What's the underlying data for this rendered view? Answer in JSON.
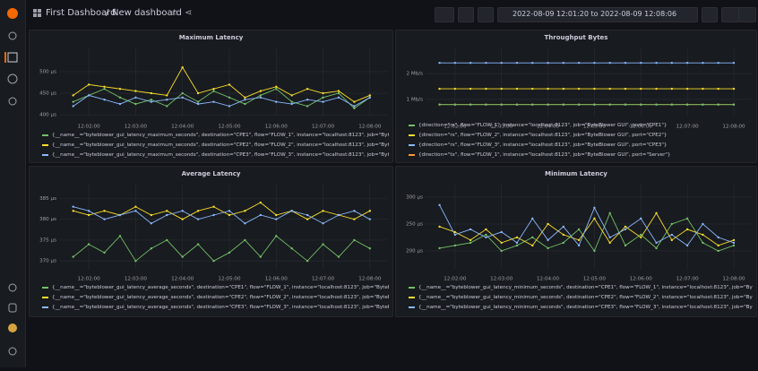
{
  "header": {
    "breadcrumb_folder": "First Dashboard",
    "separator": "/",
    "dashboard": "New dashboard",
    "time_range": "2022-08-09 12:01:20 to 2022-08-09 12:08:06"
  },
  "chart_data": [
    {
      "type": "line",
      "title": "Maximum Latency",
      "x": [
        "12:01:40",
        "12:02:00",
        "12:02:20",
        "12:02:40",
        "12:03:00",
        "12:03:20",
        "12:03:40",
        "12:04:00",
        "12:04:20",
        "12:04:40",
        "12:05:00",
        "12:05:20",
        "12:05:40",
        "12:06:00",
        "12:06:20",
        "12:06:40",
        "12:07:00",
        "12:07:20",
        "12:07:40",
        "12:08:00"
      ],
      "xlim": [
        "12:01:22",
        "12:08:22"
      ],
      "xticks": [
        "12:02:00",
        "12:03:00",
        "12:04:00",
        "12:05:00",
        "12:06:00",
        "12:07:00",
        "12:08:00"
      ],
      "ylim": [
        396,
        554
      ],
      "yticks": [
        {
          "value": 400,
          "label": "400 µs"
        },
        {
          "value": 450,
          "label": "450 µs"
        },
        {
          "value": 500,
          "label": "500 µs"
        }
      ],
      "series": [
        {
          "name": "{__name__=\"byteblower_gui_latency_maximum_seconds\", destination=\"CPE1\", flow=\"FLOW_1\", instance=\"localhost:8123\", job=\"ByteBlow",
          "color": "#73bf69",
          "values": [
            430,
            445,
            460,
            440,
            425,
            435,
            420,
            450,
            430,
            455,
            440,
            425,
            445,
            460,
            430,
            420,
            440,
            450,
            415,
            440
          ]
        },
        {
          "name": "{__name__=\"byteblower_gui_latency_maximum_seconds\", destination=\"CPE2\", flow=\"FLOW_2\", instance=\"localhost:8123\", job=\"ByteBlow",
          "color": "#fade2a",
          "values": [
            445,
            470,
            465,
            460,
            455,
            450,
            445,
            510,
            450,
            460,
            470,
            440,
            455,
            465,
            445,
            460,
            450,
            455,
            430,
            445
          ]
        },
        {
          "name": "{__name__=\"byteblower_gui_latency_maximum_seconds\", destination=\"CPE3\", flow=\"FLOW_3\", instance=\"localhost:8123\", job=\"ByteBlow",
          "color": "#8ab8ff",
          "values": [
            420,
            445,
            435,
            425,
            440,
            430,
            435,
            440,
            425,
            430,
            420,
            435,
            440,
            430,
            425,
            435,
            430,
            440,
            420,
            440
          ]
        }
      ]
    },
    {
      "type": "line",
      "title": "Throughput Bytes",
      "x": [
        "12:01:40",
        "12:02:00",
        "12:02:20",
        "12:02:40",
        "12:03:00",
        "12:03:20",
        "12:03:40",
        "12:04:00",
        "12:04:20",
        "12:04:40",
        "12:05:00",
        "12:05:20",
        "12:05:40",
        "12:06:00",
        "12:06:20",
        "12:06:40",
        "12:07:00",
        "12:07:20",
        "12:07:40",
        "12:08:00"
      ],
      "xlim": [
        "12:01:22",
        "12:08:22"
      ],
      "xticks": [
        "12:02:00",
        "12:03:00",
        "12:04:00",
        "12:05:00",
        "12:06:00",
        "12:07:00",
        "12:08:00"
      ],
      "ylim": [
        0.34,
        2.97
      ],
      "yticks": [
        {
          "value": 1,
          "label": "1 Mb/s"
        },
        {
          "value": 2,
          "label": "2 Mb/s"
        }
      ],
      "series": [
        {
          "name": "{direction=\"tx\", flow=\"FLOW_1\", instance=\"localhost:8123\", job=\"ByteBlower GUI\", port=\"Server\"}",
          "color": "#ff9830",
          "values": [
            0.8,
            0.8,
            0.8,
            0.8,
            0.8,
            0.8,
            0.8,
            0.8,
            0.8,
            0.8,
            0.8,
            0.8,
            0.8,
            0.8,
            0.8,
            0.8,
            0.8,
            0.8,
            0.8,
            0.8
          ]
        },
        {
          "name": "{direction=\"rx\", flow=\"FLOW_1\", instance=\"localhost:8123\", job=\"ByteBlower GUI\", port=\"CPE1\"}",
          "color": "#73bf69",
          "values": [
            0.8,
            0.8,
            0.8,
            0.8,
            0.8,
            0.8,
            0.8,
            0.8,
            0.8,
            0.8,
            0.8,
            0.8,
            0.8,
            0.8,
            0.8,
            0.8,
            0.8,
            0.8,
            0.8,
            0.8
          ]
        },
        {
          "name": "{direction=\"rx\", flow=\"FLOW_2\", instance=\"localhost:8123\", job=\"ByteBlower GUI\", port=\"CPE2\"}",
          "color": "#fade2a",
          "values": [
            1.41,
            1.41,
            1.41,
            1.41,
            1.41,
            1.41,
            1.41,
            1.41,
            1.41,
            1.41,
            1.41,
            1.41,
            1.41,
            1.41,
            1.41,
            1.41,
            1.41,
            1.41,
            1.41,
            1.41
          ]
        },
        {
          "name": "{direction=\"rx\", flow=\"FLOW_3\", instance=\"localhost:8123\", job=\"ByteBlower GUI\", port=\"CPE3\"}",
          "color": "#8ab8ff",
          "values": [
            2.41,
            2.41,
            2.41,
            2.41,
            2.41,
            2.41,
            2.41,
            2.41,
            2.41,
            2.41,
            2.41,
            2.41,
            2.41,
            2.41,
            2.41,
            2.41,
            2.41,
            2.41,
            2.41,
            2.41
          ]
        }
      ]
    },
    {
      "type": "line",
      "title": "Average Latency",
      "x": [
        "12:01:40",
        "12:02:00",
        "12:02:20",
        "12:02:40",
        "12:03:00",
        "12:03:20",
        "12:03:40",
        "12:04:00",
        "12:04:20",
        "12:04:40",
        "12:05:00",
        "12:05:20",
        "12:05:40",
        "12:06:00",
        "12:06:20",
        "12:06:40",
        "12:07:00",
        "12:07:20",
        "12:07:40",
        "12:08:00"
      ],
      "xlim": [
        "12:01:22",
        "12:08:22"
      ],
      "xticks": [
        "12:02:00",
        "12:03:00",
        "12:04:00",
        "12:05:00",
        "12:06:00",
        "12:07:00",
        "12:08:00"
      ],
      "ylim": [
        367.9,
        388.3
      ],
      "yticks": [
        {
          "value": 370,
          "label": "370 µs"
        },
        {
          "value": 375,
          "label": "375 µs"
        },
        {
          "value": 380,
          "label": "380 µs"
        },
        {
          "value": 385,
          "label": "385 µs"
        }
      ],
      "series": [
        {
          "name": "{__name__=\"byteblower_gui_latency_average_seconds\", destination=\"CPE1\", flow=\"FLOW_1\", instance=\"localhost:8123\", job=\"ByteBlow",
          "color": "#73bf69",
          "values": [
            371,
            374,
            372,
            376,
            370,
            373,
            375,
            371,
            374,
            370,
            372,
            375,
            371,
            376,
            373,
            370,
            374,
            371,
            375,
            373
          ]
        },
        {
          "name": "{__name__=\"byteblower_gui_latency_average_seconds\", destination=\"CPE2\", flow=\"FLOW_2\", instance=\"localhost:8123\", job=\"ByteBlow",
          "color": "#fade2a",
          "values": [
            382,
            381,
            382,
            381,
            383,
            381,
            382,
            380,
            382,
            383,
            381,
            382,
            384,
            381,
            382,
            380,
            382,
            381,
            380,
            382
          ]
        },
        {
          "name": "{__name__=\"byteblower_gui_latency_average_seconds\", destination=\"CPE3\", flow=\"FLOW_3\", instance=\"localhost:8123\", job=\"ByteBlow",
          "color": "#8ab8ff",
          "values": [
            383,
            382,
            380,
            381,
            382,
            379,
            381,
            382,
            380,
            381,
            382,
            379,
            381,
            380,
            382,
            381,
            379,
            381,
            382,
            380
          ]
        }
      ]
    },
    {
      "type": "line",
      "title": "Minimum Latency",
      "x": [
        "12:01:40",
        "12:02:00",
        "12:02:20",
        "12:02:40",
        "12:03:00",
        "12:03:20",
        "12:03:40",
        "12:04:00",
        "12:04:20",
        "12:04:40",
        "12:05:00",
        "12:05:20",
        "12:05:40",
        "12:06:00",
        "12:06:20",
        "12:06:40",
        "12:07:00",
        "12:07:20",
        "12:07:40",
        "12:08:00"
      ],
      "xlim": [
        "12:01:22",
        "12:08:22"
      ],
      "xticks": [
        "12:02:00",
        "12:03:00",
        "12:04:00",
        "12:05:00",
        "12:06:00",
        "12:07:00",
        "12:08:00"
      ],
      "ylim": [
        165,
        323
      ],
      "yticks": [
        {
          "value": 200,
          "label": "200 µs"
        },
        {
          "value": 250,
          "label": "250 µs"
        },
        {
          "value": 300,
          "label": "300 µs"
        }
      ],
      "series": [
        {
          "name": "{__name__=\"byteblower_gui_latency_minimum_seconds\", destination=\"CPE1\", flow=\"FLOW_1\", instance=\"localhost:8123\", job=\"ByteBlo",
          "color": "#73bf69",
          "values": [
            205,
            210,
            215,
            230,
            200,
            210,
            225,
            205,
            215,
            240,
            200,
            270,
            210,
            230,
            205,
            250,
            260,
            215,
            200,
            210
          ]
        },
        {
          "name": "{__name__=\"byteblower_gui_latency_minimum_seconds\", destination=\"CPE2\", flow=\"FLOW_2\", instance=\"localhost:8123\", job=\"ByteBlo",
          "color": "#fade2a",
          "values": [
            245,
            235,
            220,
            240,
            215,
            225,
            210,
            250,
            230,
            220,
            260,
            215,
            245,
            225,
            270,
            220,
            240,
            230,
            210,
            220
          ]
        },
        {
          "name": "{__name__=\"byteblower_gui_latency_minimum_seconds\", destination=\"CPE3\", flow=\"FLOW_3\", instance=\"localhost:8123\", job=\"ByteBlo",
          "color": "#8ab8ff",
          "values": [
            285,
            230,
            240,
            225,
            235,
            215,
            260,
            220,
            245,
            210,
            280,
            225,
            240,
            260,
            215,
            230,
            210,
            250,
            225,
            215
          ]
        }
      ]
    }
  ]
}
